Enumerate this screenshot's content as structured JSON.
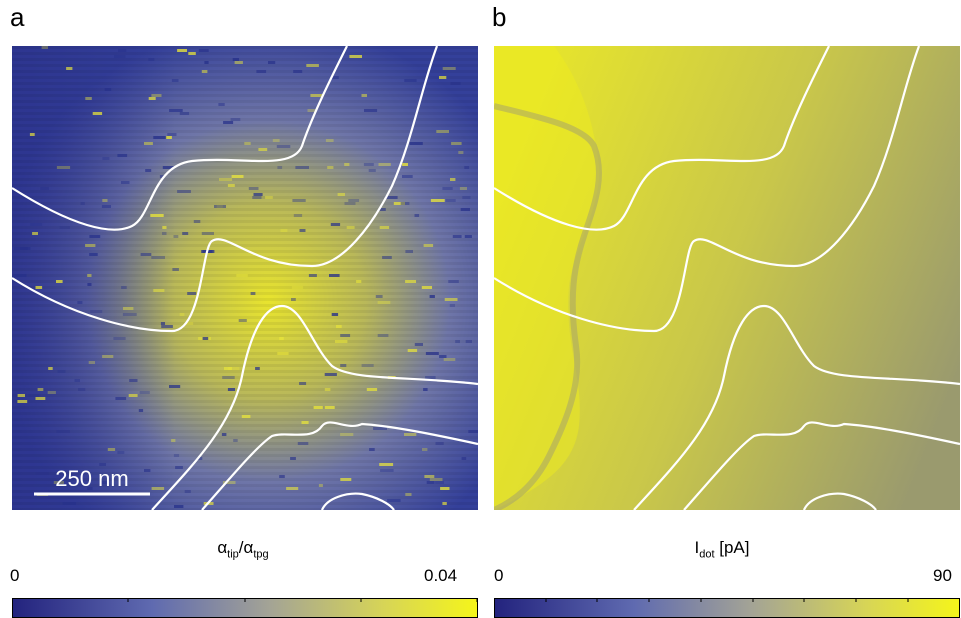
{
  "panels": [
    {
      "letter": "a",
      "scale_bar": "250 nm",
      "colorbar": {
        "label_main": "α",
        "label_sub1": "tip",
        "label_slash": "/α",
        "label_sub2": "tpg",
        "min": "0",
        "max": "0.04"
      }
    },
    {
      "letter": "b",
      "colorbar": {
        "label_main": "I",
        "label_sub1": "dot",
        "label_rest": " [pA]",
        "min": "0",
        "max": "90"
      }
    }
  ],
  "colors": {
    "low": "#2a2e8f",
    "mid": "#9a9a8a",
    "high": "#f2f21e",
    "overlay": "#ffffff"
  }
}
